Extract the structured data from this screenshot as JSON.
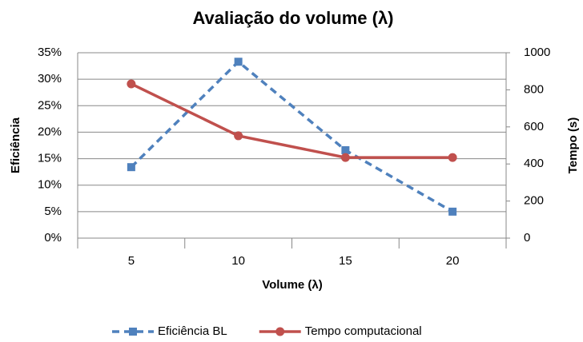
{
  "chart_data": {
    "type": "line",
    "title": "Avaliação do volume (λ)",
    "x_label": "Volume (λ)",
    "y_label": "Eficiência",
    "y2_label": "Tempo (s)",
    "categories": [
      "5",
      "10",
      "15",
      "20"
    ],
    "series": [
      {
        "name": "Eficiência BL",
        "color": "#4f81bd",
        "dashed": true,
        "marker": "square",
        "values": [
          13.4,
          33.3,
          16.6,
          5.0
        ]
      },
      {
        "name": "Tempo computacional",
        "color": "#c0504d",
        "dashed": false,
        "marker": "circle",
        "axis": "y2",
        "values": [
          832,
          552,
          435,
          435
        ]
      }
    ],
    "ylim": [
      0,
      35
    ],
    "yticks": [
      {
        "value": 0,
        "label": "0%"
      },
      {
        "value": 5,
        "label": "5%"
      },
      {
        "value": 10,
        "label": "10%"
      },
      {
        "value": 15,
        "label": "15%"
      },
      {
        "value": 20,
        "label": "20%"
      },
      {
        "value": 25,
        "label": "25%"
      },
      {
        "value": 30,
        "label": "30%"
      },
      {
        "value": 35,
        "label": "35%"
      }
    ],
    "y2lim": [
      0,
      1000
    ],
    "y2ticks": [
      0,
      200,
      400,
      600,
      800,
      1000
    ],
    "grid": true,
    "legend": "bottom"
  }
}
